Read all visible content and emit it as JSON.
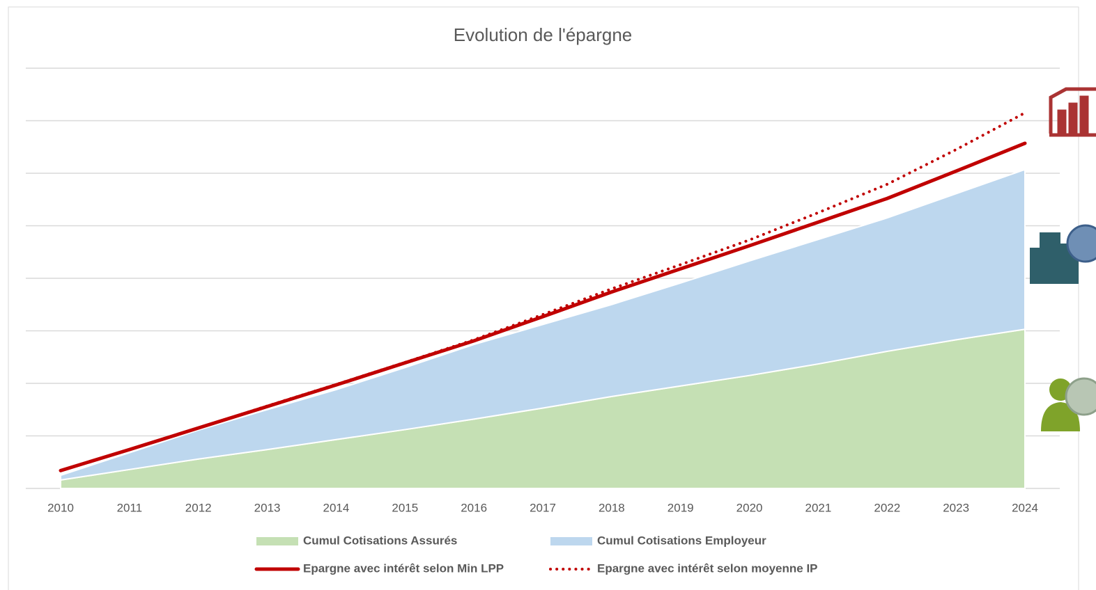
{
  "chart_data": {
    "type": "area",
    "title": "Evolution de l'épargne",
    "categories": [
      "2010",
      "2011",
      "2012",
      "2013",
      "2014",
      "2015",
      "2016",
      "2017",
      "2018",
      "2019",
      "2020",
      "2021",
      "2022",
      "2023",
      "2024"
    ],
    "ylim": [
      0,
      8
    ],
    "yticks": [
      0,
      1,
      2,
      3,
      4,
      5,
      6,
      7,
      8
    ],
    "grid": true,
    "legend": "bottom",
    "series": [
      {
        "name": "Cumul Cotisations Assurés",
        "kind": "area",
        "color": "#c5e0b4",
        "values": [
          0.16,
          0.36,
          0.56,
          0.74,
          0.93,
          1.12,
          1.32,
          1.53,
          1.75,
          1.95,
          2.15,
          2.37,
          2.61,
          2.83,
          3.03
        ]
      },
      {
        "name": "Cumul Cotisations Employeur",
        "kind": "area",
        "color": "#bdd7ee",
        "values": [
          0.09,
          0.32,
          0.55,
          0.76,
          0.95,
          1.18,
          1.42,
          1.59,
          1.75,
          1.96,
          2.18,
          2.37,
          2.54,
          2.78,
          3.04
        ]
      },
      {
        "name": "Epargne avec intérêt selon Min LPP",
        "kind": "line",
        "color": "#c00000",
        "values": [
          0.34,
          0.74,
          1.15,
          1.56,
          1.97,
          2.39,
          2.81,
          3.27,
          3.74,
          4.18,
          4.62,
          5.07,
          5.52,
          6.04,
          6.57
        ]
      },
      {
        "name": "Epargne avec intérêt selon moyenne IP",
        "kind": "dotted",
        "color": "#c00000",
        "values": [
          0.34,
          0.74,
          1.15,
          1.57,
          1.98,
          2.4,
          2.83,
          3.31,
          3.8,
          4.26,
          4.73,
          5.25,
          5.79,
          6.45,
          7.15
        ]
      }
    ]
  }
}
